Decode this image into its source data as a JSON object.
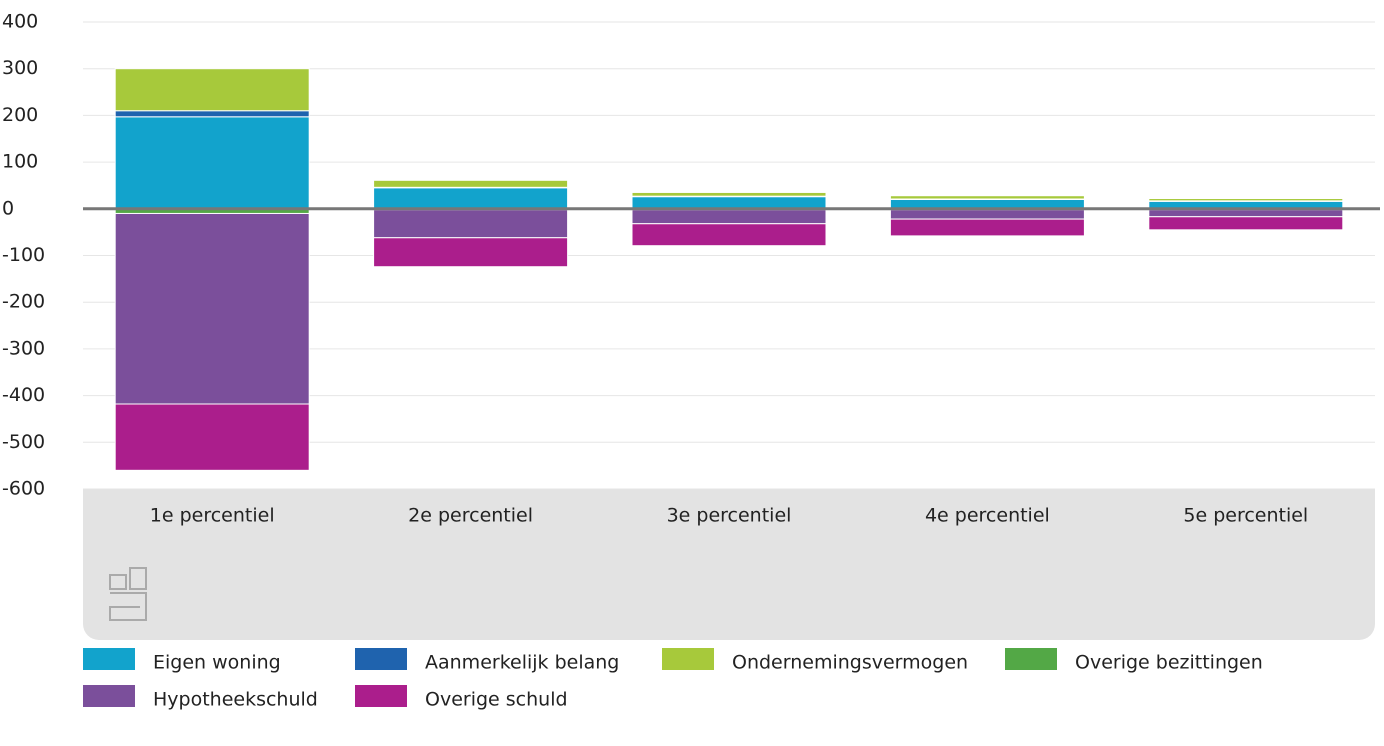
{
  "chart_data": {
    "type": "stacked_bar",
    "categories": [
      "1e percentiel",
      "2e percentiel",
      "3e percentiel",
      "4e percentiel",
      "5e percentiel"
    ],
    "series": [
      {
        "name": "Eigen woning",
        "color": "#12a3cc",
        "values": [
          197,
          45,
          26,
          20,
          16
        ]
      },
      {
        "name": "Aanmerkelijk belang",
        "color": "#1f63ae",
        "values": [
          13,
          1,
          1,
          1,
          1
        ]
      },
      {
        "name": "Ondernemingsvermogen",
        "color": "#a7c93b",
        "values": [
          90,
          15,
          8,
          7,
          5
        ]
      },
      {
        "name": "Overige bezittingen",
        "color": "#53a846",
        "values": [
          -10,
          -2,
          -2,
          -2,
          -2
        ]
      },
      {
        "name": "Hypotheekschuld",
        "color": "#7b4f9b",
        "values": [
          -408,
          -60,
          -30,
          -20,
          -15
        ]
      },
      {
        "name": "Overige schuld",
        "color": "#ab1e8c",
        "values": [
          -142,
          -62,
          -47,
          -36,
          -28
        ]
      }
    ],
    "ylim": [
      -600,
      400
    ],
    "yticks": [
      400,
      300,
      200,
      100,
      0,
      -100,
      -200,
      -300,
      -400,
      -500,
      -600
    ],
    "grid": true
  }
}
